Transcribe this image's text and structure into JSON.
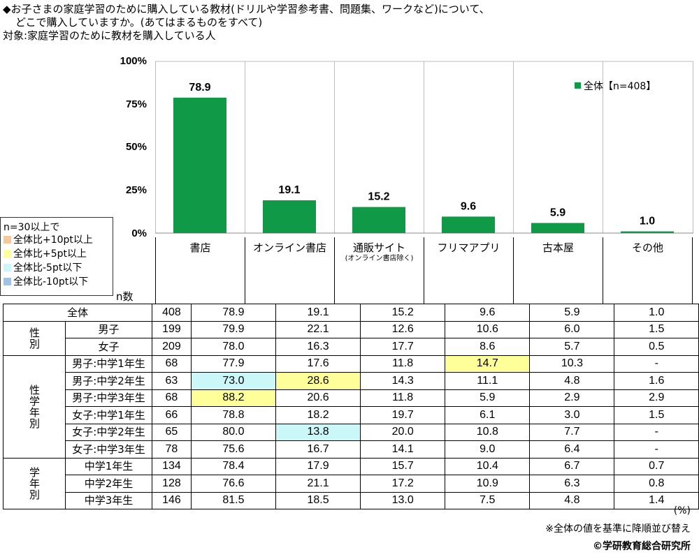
{
  "header": {
    "line1": "◆お子さまの家庭学習のために購入している教材(ドリルや学習参考書、問題集、ワークなど)について、",
    "line2": "どこで購入していますか。(あてはまるものをすべて)",
    "line3": "対象:家庭学習のために教材を購入している人"
  },
  "chart_data": {
    "type": "bar",
    "categories": [
      "書店",
      "オンライン書店",
      "通販サイト",
      "フリマアプリ",
      "古本屋",
      "その他"
    ],
    "category_sub": [
      "",
      "",
      "(オンライン書店除く)",
      "",
      "",
      ""
    ],
    "series": [
      {
        "name": "全体【n=408】",
        "values": [
          78.9,
          19.1,
          15.2,
          9.6,
          5.9,
          1.0
        ]
      }
    ],
    "value_labels": [
      "78.9",
      "19.1",
      "15.2",
      "9.6",
      "5.9",
      "1.0"
    ],
    "yticks": [
      "100%",
      "75%",
      "50%",
      "25%",
      "0%"
    ],
    "ylim": [
      0,
      100
    ],
    "legend_position": "top-right",
    "colors": {
      "bar": "#109a47",
      "grid": "#bdbdbd"
    }
  },
  "legend_box": {
    "title": "n=30以上で",
    "items": [
      {
        "label": "全体比+10pt以上",
        "color": "#f8c89a"
      },
      {
        "label": "全体比+5pt以上",
        "color": "#ffff99"
      },
      {
        "label": "全体比-5pt以下",
        "color": "#ccf7f9"
      },
      {
        "label": "全体比-10pt以下",
        "color": "#9dc3e6"
      }
    ]
  },
  "table": {
    "n_header": "n数",
    "groups": {
      "gender": "性別",
      "gender_grade": "性学年別",
      "grade": "学年別"
    },
    "rows": [
      {
        "label": "全体",
        "n": "408",
        "values": [
          "78.9",
          "19.1",
          "15.2",
          "9.6",
          "5.9",
          "1.0"
        ],
        "highlight": [
          "",
          "",
          "",
          "",
          "",
          ""
        ]
      },
      {
        "label": "男子",
        "n": "199",
        "values": [
          "79.9",
          "22.1",
          "12.6",
          "10.6",
          "6.0",
          "1.5"
        ],
        "highlight": [
          "",
          "",
          "",
          "",
          "",
          ""
        ]
      },
      {
        "label": "女子",
        "n": "209",
        "values": [
          "78.0",
          "16.3",
          "17.7",
          "8.6",
          "5.7",
          "0.5"
        ],
        "highlight": [
          "",
          "",
          "",
          "",
          "",
          ""
        ]
      },
      {
        "label": "男子:中学1年生",
        "n": "68",
        "values": [
          "77.9",
          "17.6",
          "11.8",
          "14.7",
          "10.3",
          "-"
        ],
        "highlight": [
          "",
          "",
          "",
          "yellow",
          "",
          ""
        ]
      },
      {
        "label": "男子:中学2年生",
        "n": "63",
        "values": [
          "73.0",
          "28.6",
          "14.3",
          "11.1",
          "4.8",
          "1.6"
        ],
        "highlight": [
          "cyan",
          "yellow",
          "",
          "",
          "",
          ""
        ]
      },
      {
        "label": "男子:中学3年生",
        "n": "68",
        "values": [
          "88.2",
          "20.6",
          "11.8",
          "5.9",
          "2.9",
          "2.9"
        ],
        "highlight": [
          "yellow",
          "",
          "",
          "",
          "",
          ""
        ]
      },
      {
        "label": "女子:中学1年生",
        "n": "66",
        "values": [
          "78.8",
          "18.2",
          "19.7",
          "6.1",
          "3.0",
          "1.5"
        ],
        "highlight": [
          "",
          "",
          "",
          "",
          "",
          ""
        ]
      },
      {
        "label": "女子:中学2年生",
        "n": "65",
        "values": [
          "80.0",
          "13.8",
          "20.0",
          "10.8",
          "7.7",
          "-"
        ],
        "highlight": [
          "",
          "cyan",
          "",
          "",
          "",
          ""
        ]
      },
      {
        "label": "女子:中学3年生",
        "n": "78",
        "values": [
          "75.6",
          "16.7",
          "14.1",
          "9.0",
          "6.4",
          "-"
        ],
        "highlight": [
          "",
          "",
          "",
          "",
          "",
          ""
        ]
      },
      {
        "label": "中学1年生",
        "n": "134",
        "values": [
          "78.4",
          "17.9",
          "15.7",
          "10.4",
          "6.7",
          "0.7"
        ],
        "highlight": [
          "",
          "",
          "",
          "",
          "",
          ""
        ]
      },
      {
        "label": "中学2年生",
        "n": "128",
        "values": [
          "76.6",
          "21.1",
          "17.2",
          "10.9",
          "6.3",
          "0.8"
        ],
        "highlight": [
          "",
          "",
          "",
          "",
          "",
          ""
        ]
      },
      {
        "label": "中学3年生",
        "n": "146",
        "values": [
          "81.5",
          "18.5",
          "13.0",
          "7.5",
          "4.8",
          "1.4"
        ],
        "highlight": [
          "",
          "",
          "",
          "",
          "",
          ""
        ]
      }
    ]
  },
  "footer": {
    "unit": "(%)",
    "note": "※全体の値を基準に降順並び替え",
    "copyright": "©学研教育総合研究所"
  }
}
